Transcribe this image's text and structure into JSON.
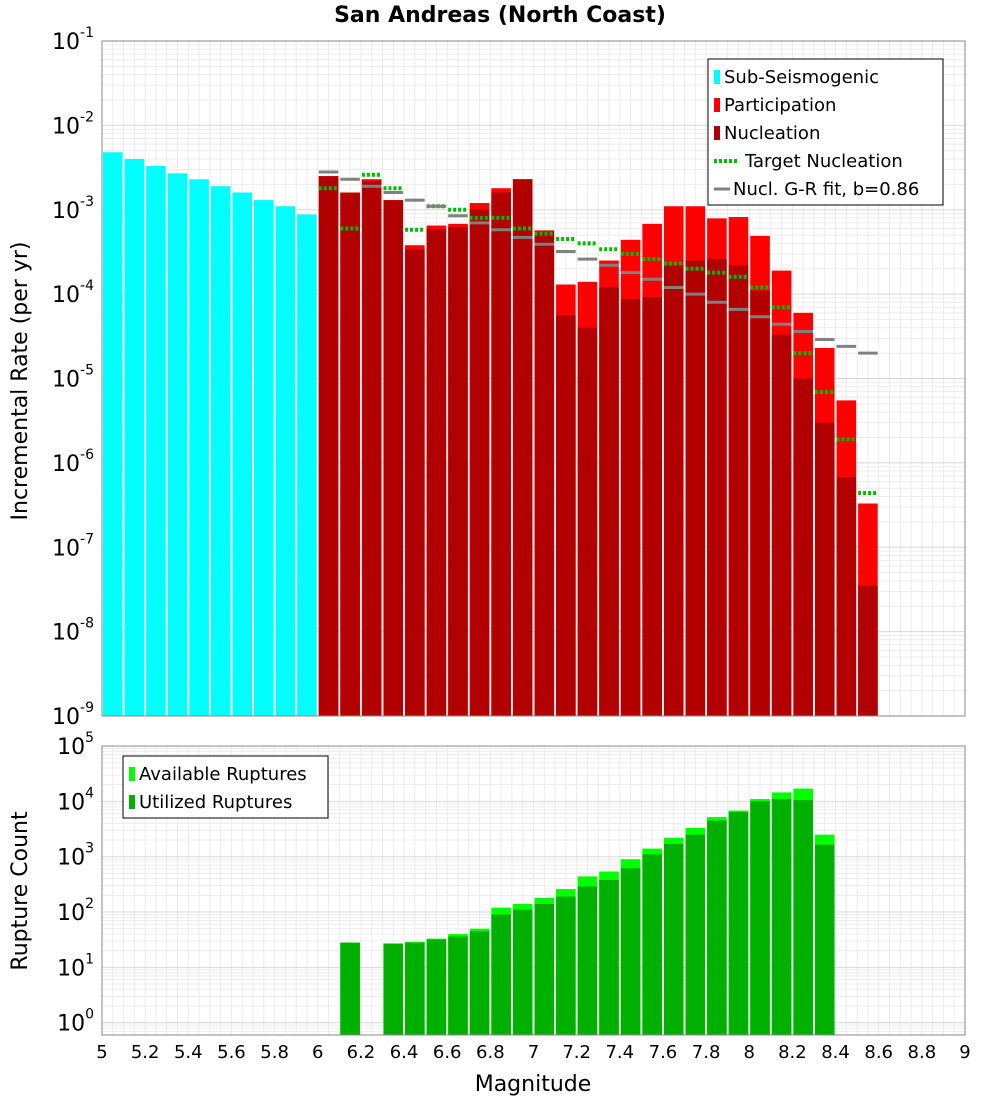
{
  "figure": {
    "title": "San Andreas (North Coast)",
    "xlabel": "Magnitude",
    "x_ticks": [
      "5",
      "5.2",
      "5.4",
      "5.6",
      "5.8",
      "6",
      "6.2",
      "6.4",
      "6.6",
      "6.8",
      "7",
      "7.2",
      "7.4",
      "7.6",
      "7.8",
      "8",
      "8.2",
      "8.4",
      "8.6",
      "8.8",
      "9"
    ]
  },
  "chart_data": [
    {
      "type": "bar",
      "ylabel": "Incremental Rate (per yr)",
      "xlim": [
        5,
        9
      ],
      "ylim": [
        1e-09,
        0.1
      ],
      "yscale": "log",
      "y_ticks": [
        {
          "base": "10",
          "exp": "-9"
        },
        {
          "base": "10",
          "exp": "-8"
        },
        {
          "base": "10",
          "exp": "-7"
        },
        {
          "base": "10",
          "exp": "-6"
        },
        {
          "base": "10",
          "exp": "-5"
        },
        {
          "base": "10",
          "exp": "-4"
        },
        {
          "base": "10",
          "exp": "-3"
        },
        {
          "base": "10",
          "exp": "-2"
        },
        {
          "base": "10",
          "exp": "-1"
        }
      ],
      "grid": true,
      "legend_position": "top-right",
      "legend": [
        "Sub-Seismogenic",
        "Participation",
        "Nucleation",
        "Target Nucleation",
        "Nucl. G-R fit, b=0.86"
      ],
      "series": [
        {
          "name": "Sub-Seismogenic",
          "color": "#00ffff",
          "kind": "bar",
          "x": [
            5.05,
            5.15,
            5.25,
            5.35,
            5.45,
            5.55,
            5.65,
            5.75,
            5.85,
            5.95
          ],
          "values": [
            0.0048,
            0.004,
            0.0033,
            0.0027,
            0.0023,
            0.0019,
            0.0016,
            0.0013,
            0.0011,
            0.00088
          ]
        },
        {
          "name": "Participation",
          "color": "#ff0000",
          "kind": "bar",
          "x": [
            6.05,
            6.15,
            6.25,
            6.35,
            6.45,
            6.55,
            6.65,
            6.75,
            6.85,
            6.95,
            7.05,
            7.15,
            7.25,
            7.35,
            7.45,
            7.55,
            7.65,
            7.75,
            7.85,
            7.95,
            8.05,
            8.15,
            8.25,
            8.35,
            8.45,
            8.55
          ],
          "values": [
            0.0025,
            0.0016,
            0.0023,
            0.0013,
            0.00038,
            0.00065,
            0.00068,
            0.0012,
            0.0018,
            0.0023,
            0.00057,
            0.00013,
            0.00014,
            0.00025,
            0.00044,
            0.00068,
            0.0011,
            0.0011,
            0.00079,
            0.00082,
            0.00049,
            0.00019,
            6e-05,
            2.3e-05,
            5.5e-06,
            3.3e-07
          ]
        },
        {
          "name": "Nucleation",
          "color": "#b20000",
          "kind": "bar",
          "x": [
            6.05,
            6.15,
            6.25,
            6.35,
            6.45,
            6.55,
            6.65,
            6.75,
            6.85,
            6.95,
            7.05,
            7.15,
            7.25,
            7.35,
            7.45,
            7.55,
            7.65,
            7.75,
            7.85,
            7.95,
            8.05,
            8.15,
            8.25,
            8.35,
            8.45,
            8.55
          ],
          "values": [
            0.0025,
            0.0016,
            0.0022,
            0.0013,
            0.00034,
            0.00059,
            0.00062,
            0.001,
            0.0016,
            0.0023,
            0.00055,
            5.6e-05,
            4e-05,
            0.00012,
            8.7e-05,
            9.2e-05,
            0.00022,
            0.00025,
            0.00026,
            0.00022,
            0.00011,
            3.3e-05,
            1e-05,
            3e-06,
            6.8e-07,
            3.5e-08
          ]
        },
        {
          "name": "Target Nucleation",
          "color": "#00bb00",
          "kind": "dotted-step",
          "x": [
            6.05,
            6.15,
            6.25,
            6.35,
            6.45,
            6.55,
            6.65,
            6.75,
            6.85,
            6.95,
            7.05,
            7.15,
            7.25,
            7.35,
            7.45,
            7.55,
            7.65,
            7.75,
            7.85,
            7.95,
            8.05,
            8.15,
            8.25,
            8.35,
            8.45,
            8.55
          ],
          "values": [
            0.0018,
            0.0006,
            0.0026,
            0.0018,
            0.00058,
            0.0011,
            0.001,
            0.0008,
            0.0008,
            0.0006,
            0.00052,
            0.00045,
            0.0004,
            0.00034,
            0.0003,
            0.00026,
            0.00023,
            0.0002,
            0.00018,
            0.00016,
            0.00012,
            7e-05,
            2e-05,
            6.9e-06,
            1.9e-06,
            4.4e-07
          ]
        },
        {
          "name": "Nucl. G-R fit, b=0.86",
          "color": "#808080",
          "kind": "step",
          "x": [
            6.05,
            6.15,
            6.25,
            6.35,
            6.45,
            6.55,
            6.65,
            6.75,
            6.85,
            6.95,
            7.05,
            7.15,
            7.25,
            7.35,
            7.45,
            7.55,
            7.65,
            7.75,
            7.85,
            7.95,
            8.05,
            8.15,
            8.25,
            8.35,
            8.45,
            8.55
          ],
          "values": [
            0.0028,
            0.0023,
            0.0019,
            0.0016,
            0.0013,
            0.0011,
            0.00085,
            0.0007,
            0.00058,
            0.00047,
            0.00039,
            0.00032,
            0.00026,
            0.00022,
            0.00018,
            0.00015,
            0.00012,
            0.0001,
            8e-05,
            6.6e-05,
            5.4e-05,
            4.4e-05,
            3.6e-05,
            2.9e-05,
            2.4e-05,
            2e-05
          ]
        }
      ]
    },
    {
      "type": "bar",
      "ylabel": "Rupture Count",
      "xlim": [
        5,
        9
      ],
      "ylim": [
        0.6,
        100000
      ],
      "yscale": "log",
      "y_ticks": [
        {
          "base": "10",
          "exp": "0"
        },
        {
          "base": "10",
          "exp": "1"
        },
        {
          "base": "10",
          "exp": "2"
        },
        {
          "base": "10",
          "exp": "3"
        },
        {
          "base": "10",
          "exp": "4"
        },
        {
          "base": "10",
          "exp": "5"
        }
      ],
      "grid": true,
      "legend_position": "top-left",
      "legend": [
        "Available Ruptures",
        "Utilized Ruptures"
      ],
      "series": [
        {
          "name": "Available Ruptures",
          "color": "#00ff00",
          "kind": "bar",
          "x": [
            6.15,
            6.35,
            6.45,
            6.55,
            6.65,
            6.75,
            6.85,
            6.95,
            7.05,
            7.15,
            7.25,
            7.35,
            7.45,
            7.55,
            7.65,
            7.75,
            7.85,
            7.95,
            8.05,
            8.15,
            8.25,
            8.35
          ],
          "values": [
            28,
            27,
            29,
            33,
            40,
            50,
            120,
            140,
            180,
            260,
            440,
            540,
            900,
            1400,
            2200,
            3300,
            5200,
            6800,
            11000,
            14500,
            17000,
            2500
          ]
        },
        {
          "name": "Utilized Ruptures",
          "color": "#00b000",
          "kind": "bar",
          "x": [
            6.15,
            6.35,
            6.45,
            6.55,
            6.65,
            6.75,
            6.85,
            6.95,
            7.05,
            7.15,
            7.25,
            7.35,
            7.45,
            7.55,
            7.65,
            7.75,
            7.85,
            7.95,
            8.05,
            8.15,
            8.25,
            8.35
          ],
          "values": [
            28,
            27,
            28,
            32,
            36,
            45,
            90,
            110,
            140,
            190,
            290,
            380,
            620,
            1100,
            1700,
            2500,
            4500,
            6400,
            10000,
            11000,
            10500,
            1650
          ]
        }
      ]
    }
  ]
}
